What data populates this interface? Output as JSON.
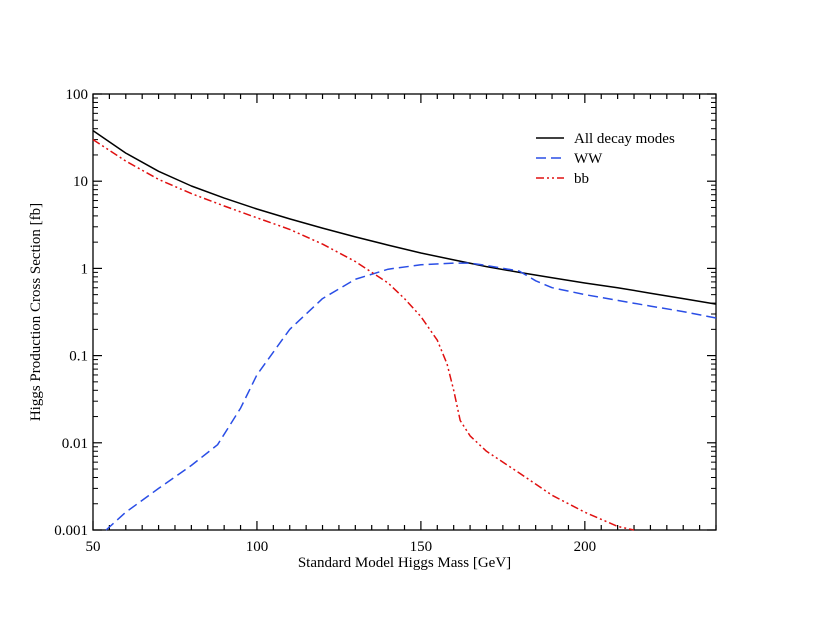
{
  "chart_data": {
    "type": "line",
    "title": "",
    "xlabel": "Standard Model Higgs Mass [GeV]",
    "ylabel": "Higgs Production Cross Section [fb]",
    "xlim": [
      50,
      240
    ],
    "ylim": [
      0.001,
      100
    ],
    "yscale": "log",
    "grid": false,
    "legend_position": "top-right",
    "x_ticks": [
      50,
      100,
      150,
      200
    ],
    "x_tick_labels": [
      "50",
      "100",
      "150",
      "200"
    ],
    "y_ticks": [
      0.001,
      0.01,
      0.1,
      1,
      10,
      100
    ],
    "y_tick_labels": [
      "0.001",
      "0.01",
      "0.1",
      "1",
      "10",
      "100"
    ],
    "series": [
      {
        "name": "All decay modes",
        "color": "#000000",
        "style": "solid",
        "x": [
          50,
          60,
          70,
          80,
          90,
          100,
          110,
          120,
          130,
          140,
          150,
          160,
          170,
          180,
          190,
          200,
          210,
          220,
          230,
          240
        ],
        "values": [
          38,
          21,
          13,
          8.8,
          6.4,
          4.8,
          3.7,
          2.9,
          2.3,
          1.85,
          1.5,
          1.25,
          1.05,
          0.9,
          0.78,
          0.68,
          0.6,
          0.52,
          0.45,
          0.39
        ]
      },
      {
        "name": "WW",
        "color": "#2a4ee6",
        "style": "dashed",
        "x": [
          54,
          60,
          70,
          80,
          88,
          95,
          100,
          110,
          120,
          130,
          140,
          150,
          160,
          165,
          170,
          180,
          185,
          190,
          200,
          210,
          220,
          230,
          240
        ],
        "values": [
          0.001,
          0.0016,
          0.003,
          0.0055,
          0.0095,
          0.025,
          0.06,
          0.2,
          0.45,
          0.75,
          0.98,
          1.1,
          1.15,
          1.15,
          1.08,
          0.93,
          0.72,
          0.6,
          0.5,
          0.43,
          0.37,
          0.32,
          0.27
        ]
      },
      {
        "name": "bb",
        "color": "#e01010",
        "style": "dashdotdot",
        "x": [
          50,
          60,
          70,
          80,
          90,
          100,
          110,
          120,
          130,
          140,
          145,
          150,
          155,
          158,
          160,
          162,
          165,
          170,
          180,
          190,
          200,
          210,
          215
        ],
        "values": [
          30,
          17,
          10.5,
          7.2,
          5.2,
          3.8,
          2.8,
          1.9,
          1.2,
          0.68,
          0.45,
          0.28,
          0.15,
          0.08,
          0.04,
          0.018,
          0.012,
          0.008,
          0.0045,
          0.0025,
          0.0016,
          0.0011,
          0.001
        ]
      }
    ]
  }
}
